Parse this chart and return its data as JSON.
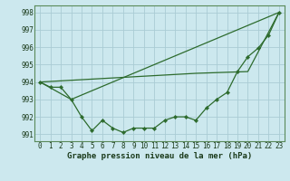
{
  "title": "Graphe pression niveau de la mer (hPa)",
  "background_color": "#cce8ee",
  "grid_color": "#aaccd4",
  "line_color": "#2d6b2d",
  "marker_color": "#2d6b2d",
  "xlim": [
    -0.5,
    23.5
  ],
  "ylim": [
    990.6,
    998.4
  ],
  "yticks": [
    991,
    992,
    993,
    994,
    995,
    996,
    997,
    998
  ],
  "xticks": [
    0,
    1,
    2,
    3,
    4,
    5,
    6,
    7,
    8,
    9,
    10,
    11,
    12,
    13,
    14,
    15,
    16,
    17,
    18,
    19,
    20,
    21,
    22,
    23
  ],
  "series1": [
    994.0,
    993.7,
    993.7,
    993.0,
    992.0,
    991.2,
    991.8,
    991.35,
    991.1,
    991.35,
    991.35,
    991.35,
    991.8,
    992.0,
    992.0,
    991.8,
    992.5,
    993.0,
    993.4,
    994.6,
    995.45,
    995.95,
    996.7,
    998.0
  ],
  "series2_x": [
    0,
    3,
    23
  ],
  "series2_y": [
    994.0,
    993.0,
    998.0
  ],
  "series3_x": [
    0,
    15,
    20,
    23
  ],
  "series3_y": [
    994.0,
    994.5,
    994.6,
    998.0
  ],
  "tick_fontsize": 5.5,
  "title_fontsize": 6.5
}
